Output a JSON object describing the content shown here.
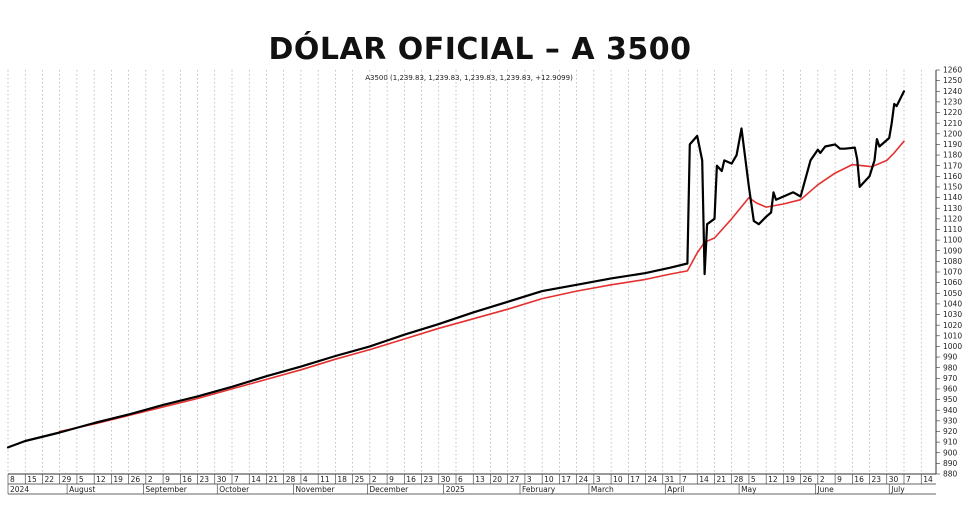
{
  "chart_data": {
    "type": "line",
    "title": "DÓLAR OFICIAL – A 3500",
    "subtitle": "A3500 (1,239.83, 1,239.83, 1,239.83, 1,239.83, +12.9099)",
    "ylim": [
      880,
      1260
    ],
    "y_ticks": [
      880,
      890,
      900,
      910,
      920,
      930,
      940,
      950,
      960,
      970,
      980,
      990,
      1000,
      1010,
      1020,
      1030,
      1040,
      1050,
      1060,
      1070,
      1080,
      1090,
      1100,
      1110,
      1120,
      1130,
      1140,
      1150,
      1160,
      1170,
      1180,
      1190,
      1200,
      1210,
      1220,
      1230,
      1240,
      1250,
      1260
    ],
    "xlim": [
      "2024-07-08",
      "2025-07-20"
    ],
    "x_day_labels": [
      {
        "d": "2024-07-08",
        "t": "8"
      },
      {
        "d": "2024-07-15",
        "t": "15"
      },
      {
        "d": "2024-07-22",
        "t": "22"
      },
      {
        "d": "2024-07-29",
        "t": "29"
      },
      {
        "d": "2024-08-05",
        "t": "5"
      },
      {
        "d": "2024-08-12",
        "t": "12"
      },
      {
        "d": "2024-08-19",
        "t": "19"
      },
      {
        "d": "2024-08-26",
        "t": "26"
      },
      {
        "d": "2024-09-02",
        "t": "2"
      },
      {
        "d": "2024-09-09",
        "t": "9"
      },
      {
        "d": "2024-09-16",
        "t": "16"
      },
      {
        "d": "2024-09-23",
        "t": "23"
      },
      {
        "d": "2024-09-30",
        "t": "30"
      },
      {
        "d": "2024-10-07",
        "t": "7"
      },
      {
        "d": "2024-10-14",
        "t": "14"
      },
      {
        "d": "2024-10-21",
        "t": "21"
      },
      {
        "d": "2024-10-28",
        "t": "28"
      },
      {
        "d": "2024-11-04",
        "t": "4"
      },
      {
        "d": "2024-11-11",
        "t": "11"
      },
      {
        "d": "2024-11-18",
        "t": "18"
      },
      {
        "d": "2024-11-25",
        "t": "25"
      },
      {
        "d": "2024-12-02",
        "t": "2"
      },
      {
        "d": "2024-12-09",
        "t": "9"
      },
      {
        "d": "2024-12-16",
        "t": "16"
      },
      {
        "d": "2024-12-23",
        "t": "23"
      },
      {
        "d": "2024-12-30",
        "t": "30"
      },
      {
        "d": "2025-01-06",
        "t": "6"
      },
      {
        "d": "2025-01-13",
        "t": "13"
      },
      {
        "d": "2025-01-20",
        "t": "20"
      },
      {
        "d": "2025-01-27",
        "t": "27"
      },
      {
        "d": "2025-02-03",
        "t": "3"
      },
      {
        "d": "2025-02-10",
        "t": "10"
      },
      {
        "d": "2025-02-17",
        "t": "17"
      },
      {
        "d": "2025-02-24",
        "t": "24"
      },
      {
        "d": "2025-03-03",
        "t": "3"
      },
      {
        "d": "2025-03-10",
        "t": "10"
      },
      {
        "d": "2025-03-17",
        "t": "17"
      },
      {
        "d": "2025-03-24",
        "t": "24"
      },
      {
        "d": "2025-03-31",
        "t": "31"
      },
      {
        "d": "2025-04-07",
        "t": "7"
      },
      {
        "d": "2025-04-14",
        "t": "14"
      },
      {
        "d": "2025-04-21",
        "t": "21"
      },
      {
        "d": "2025-04-28",
        "t": "28"
      },
      {
        "d": "2025-05-05",
        "t": "5"
      },
      {
        "d": "2025-05-12",
        "t": "12"
      },
      {
        "d": "2025-05-19",
        "t": "19"
      },
      {
        "d": "2025-05-26",
        "t": "26"
      },
      {
        "d": "2025-06-02",
        "t": "2"
      },
      {
        "d": "2025-06-09",
        "t": "9"
      },
      {
        "d": "2025-06-16",
        "t": "16"
      },
      {
        "d": "2025-06-23",
        "t": "23"
      },
      {
        "d": "2025-06-30",
        "t": "30"
      },
      {
        "d": "2025-07-07",
        "t": "7"
      },
      {
        "d": "2025-07-14",
        "t": "14"
      }
    ],
    "x_month_labels": [
      {
        "d": "2024-07-08",
        "t": "2024"
      },
      {
        "d": "2024-08-01",
        "t": "August"
      },
      {
        "d": "2024-09-01",
        "t": "September"
      },
      {
        "d": "2024-10-01",
        "t": "October"
      },
      {
        "d": "2024-11-01",
        "t": "November"
      },
      {
        "d": "2024-12-01",
        "t": "December"
      },
      {
        "d": "2025-01-01",
        "t": "2025"
      },
      {
        "d": "2025-02-01",
        "t": "February"
      },
      {
        "d": "2025-03-01",
        "t": "March"
      },
      {
        "d": "2025-04-01",
        "t": "April"
      },
      {
        "d": "2025-05-01",
        "t": "May"
      },
      {
        "d": "2025-06-01",
        "t": "June"
      },
      {
        "d": "2025-07-01",
        "t": "July"
      }
    ],
    "grid": "vertical-dotted",
    "series": [
      {
        "color": "#000000",
        "points": [
          [
            "2024-07-08",
            905
          ],
          [
            "2024-07-15",
            911
          ],
          [
            "2024-07-29",
            919
          ],
          [
            "2024-08-12",
            928
          ],
          [
            "2024-08-26",
            936
          ],
          [
            "2024-09-09",
            945
          ],
          [
            "2024-09-23",
            953
          ],
          [
            "2024-10-07",
            962
          ],
          [
            "2024-10-21",
            972
          ],
          [
            "2024-11-04",
            981
          ],
          [
            "2024-11-18",
            991
          ],
          [
            "2024-12-02",
            1000
          ],
          [
            "2024-12-16",
            1011
          ],
          [
            "2024-12-30",
            1021
          ],
          [
            "2025-01-13",
            1032
          ],
          [
            "2025-01-27",
            1042
          ],
          [
            "2025-02-10",
            1052
          ],
          [
            "2025-02-24",
            1058
          ],
          [
            "2025-03-10",
            1064
          ],
          [
            "2025-03-24",
            1069
          ],
          [
            "2025-04-03",
            1074
          ],
          [
            "2025-04-10",
            1078
          ],
          [
            "2025-04-11",
            1190
          ],
          [
            "2025-04-14",
            1198
          ],
          [
            "2025-04-16",
            1175
          ],
          [
            "2025-04-17",
            1068
          ],
          [
            "2025-04-18",
            1115
          ],
          [
            "2025-04-21",
            1120
          ],
          [
            "2025-04-22",
            1170
          ],
          [
            "2025-04-24",
            1165
          ],
          [
            "2025-04-25",
            1175
          ],
          [
            "2025-04-28",
            1172
          ],
          [
            "2025-04-30",
            1180
          ],
          [
            "2025-05-02",
            1205
          ],
          [
            "2025-05-05",
            1150
          ],
          [
            "2025-05-07",
            1118
          ],
          [
            "2025-05-09",
            1115
          ],
          [
            "2025-05-12",
            1122
          ],
          [
            "2025-05-14",
            1126
          ],
          [
            "2025-05-15",
            1145
          ],
          [
            "2025-05-16",
            1138
          ],
          [
            "2025-05-20",
            1142
          ],
          [
            "2025-05-23",
            1145
          ],
          [
            "2025-05-26",
            1141
          ],
          [
            "2025-05-30",
            1175
          ],
          [
            "2025-06-02",
            1185
          ],
          [
            "2025-06-03",
            1182
          ],
          [
            "2025-06-05",
            1188
          ],
          [
            "2025-06-09",
            1190
          ],
          [
            "2025-06-11",
            1186
          ],
          [
            "2025-06-13",
            1186
          ],
          [
            "2025-06-17",
            1187
          ],
          [
            "2025-06-18",
            1176
          ],
          [
            "2025-06-19",
            1150
          ],
          [
            "2025-06-23",
            1160
          ],
          [
            "2025-06-25",
            1175
          ],
          [
            "2025-06-26",
            1195
          ],
          [
            "2025-06-27",
            1188
          ],
          [
            "2025-07-01",
            1196
          ],
          [
            "2025-07-02",
            1210
          ],
          [
            "2025-07-03",
            1228
          ],
          [
            "2025-07-04",
            1226
          ],
          [
            "2025-07-07",
            1240
          ]
        ]
      },
      {
        "color": "#e53030",
        "points": [
          [
            "2024-07-29",
            920
          ],
          [
            "2024-08-12",
            927
          ],
          [
            "2024-08-26",
            935
          ],
          [
            "2024-09-09",
            943
          ],
          [
            "2024-09-23",
            951
          ],
          [
            "2024-10-07",
            960
          ],
          [
            "2024-10-21",
            969
          ],
          [
            "2024-11-04",
            978
          ],
          [
            "2024-11-18",
            988
          ],
          [
            "2024-12-02",
            997
          ],
          [
            "2024-12-16",
            1007
          ],
          [
            "2024-12-30",
            1017
          ],
          [
            "2025-01-13",
            1026
          ],
          [
            "2025-01-27",
            1035
          ],
          [
            "2025-02-10",
            1045
          ],
          [
            "2025-02-24",
            1052
          ],
          [
            "2025-03-10",
            1058
          ],
          [
            "2025-03-24",
            1063
          ],
          [
            "2025-04-03",
            1068
          ],
          [
            "2025-04-10",
            1071
          ],
          [
            "2025-04-14",
            1088
          ],
          [
            "2025-04-17",
            1098
          ],
          [
            "2025-04-21",
            1102
          ],
          [
            "2025-04-28",
            1120
          ],
          [
            "2025-05-05",
            1140
          ],
          [
            "2025-05-08",
            1135
          ],
          [
            "2025-05-12",
            1131
          ],
          [
            "2025-05-19",
            1134
          ],
          [
            "2025-05-26",
            1138
          ],
          [
            "2025-06-02",
            1152
          ],
          [
            "2025-06-09",
            1163
          ],
          [
            "2025-06-16",
            1171
          ],
          [
            "2025-06-20",
            1170
          ],
          [
            "2025-06-24",
            1169
          ],
          [
            "2025-06-30",
            1175
          ],
          [
            "2025-07-03",
            1182
          ],
          [
            "2025-07-07",
            1193
          ]
        ]
      }
    ]
  }
}
